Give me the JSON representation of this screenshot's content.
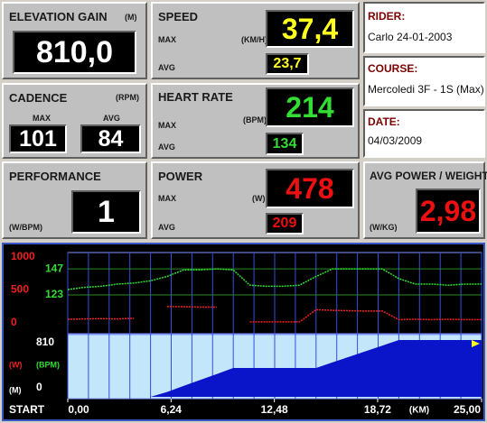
{
  "panels": {
    "elevation_gain": {
      "title": "ELEVATION GAIN",
      "unit": "(M)",
      "value": "810,0"
    },
    "speed": {
      "title": "SPEED",
      "max_label": "MAX",
      "unit": "(KM/H)",
      "max": "37,4",
      "avg_label": "AVG",
      "avg": "23,7"
    },
    "cadence": {
      "title": "CADENCE",
      "unit": "(RPM)",
      "max_label": "MAX",
      "avg_label": "AVG",
      "max": "101",
      "avg": "84"
    },
    "heart_rate": {
      "title": "HEART RATE",
      "max_label": "MAX",
      "unit": "(BPM)",
      "max": "214",
      "avg_label": "AVG",
      "avg": "134"
    },
    "performance": {
      "title": "PERFORMANCE",
      "unit": "(W/BPM)",
      "value": "1"
    },
    "power": {
      "title": "POWER",
      "max_label": "MAX",
      "unit": "(W)",
      "max": "478",
      "avg_label": "AVG",
      "avg": "209"
    },
    "avg_power_weight": {
      "title": "AVG POWER / WEIGHT",
      "unit": "(W/KG)",
      "value": "2,98"
    }
  },
  "info": {
    "rider": {
      "label": "RIDER:",
      "value": "Carlo 24-01-2003"
    },
    "course": {
      "label": "COURSE:",
      "value": "Mercoledi 3F - 1S (Max)"
    },
    "date": {
      "label": "DATE:",
      "value": "04/03/2009"
    }
  },
  "chart_data": {
    "type": "line",
    "start_label": "START",
    "x_unit": "(KM)",
    "x": [
      0,
      1,
      2,
      3,
      4,
      5,
      6,
      7,
      8,
      9,
      10,
      11,
      12,
      13,
      14,
      15,
      16,
      17,
      18,
      19,
      20,
      21,
      22,
      23,
      24,
      25
    ],
    "xlim": [
      0,
      25
    ],
    "xticks": [
      {
        "value": 0,
        "label": "0,00"
      },
      {
        "value": 6.24,
        "label": "6,24"
      },
      {
        "value": 12.48,
        "label": "12,48"
      },
      {
        "value": 18.72,
        "label": "18,72"
      },
      {
        "value": 25,
        "label": "25,00"
      }
    ],
    "xgrid": [
      0,
      1.25,
      2.5,
      3.75,
      5,
      6.25,
      7.5,
      8.75,
      10,
      11.25,
      12.5,
      13.75,
      15,
      16.25,
      17.5,
      18.75,
      20,
      21.25,
      22.5,
      23.75,
      25
    ],
    "series": [
      {
        "name": "(BPM)",
        "color": "#33dd33",
        "ylim": [
          89,
          162
        ],
        "yticks": [
          123,
          147
        ],
        "values": [
          128,
          130,
          131,
          133,
          134,
          136,
          140,
          146,
          146,
          147,
          146,
          132,
          131,
          131,
          132,
          140,
          147,
          147,
          147,
          147,
          138,
          133,
          133,
          132,
          133,
          133
        ]
      },
      {
        "name": "(W)",
        "color": "#ee2020",
        "ylim": [
          0,
          1000
        ],
        "yticks": [
          0,
          500,
          1000
        ],
        "values": [
          55,
          60,
          65,
          60,
          70,
          null,
          250,
          245,
          240,
          240,
          null,
          15,
          15,
          15,
          15,
          200,
          190,
          185,
          180,
          180,
          50,
          55,
          50,
          55,
          50,
          50
        ]
      },
      {
        "name": "(M)",
        "color": "#0a14c8",
        "ylim": [
          0,
          810
        ],
        "yticks": [
          0,
          810
        ],
        "values": [
          0,
          0,
          0,
          0,
          0,
          0,
          69,
          155,
          240,
          325,
          411,
          411,
          411,
          411,
          411,
          411,
          491,
          571,
          650,
          730,
          810,
          810,
          810,
          810,
          810,
          810
        ]
      }
    ]
  }
}
